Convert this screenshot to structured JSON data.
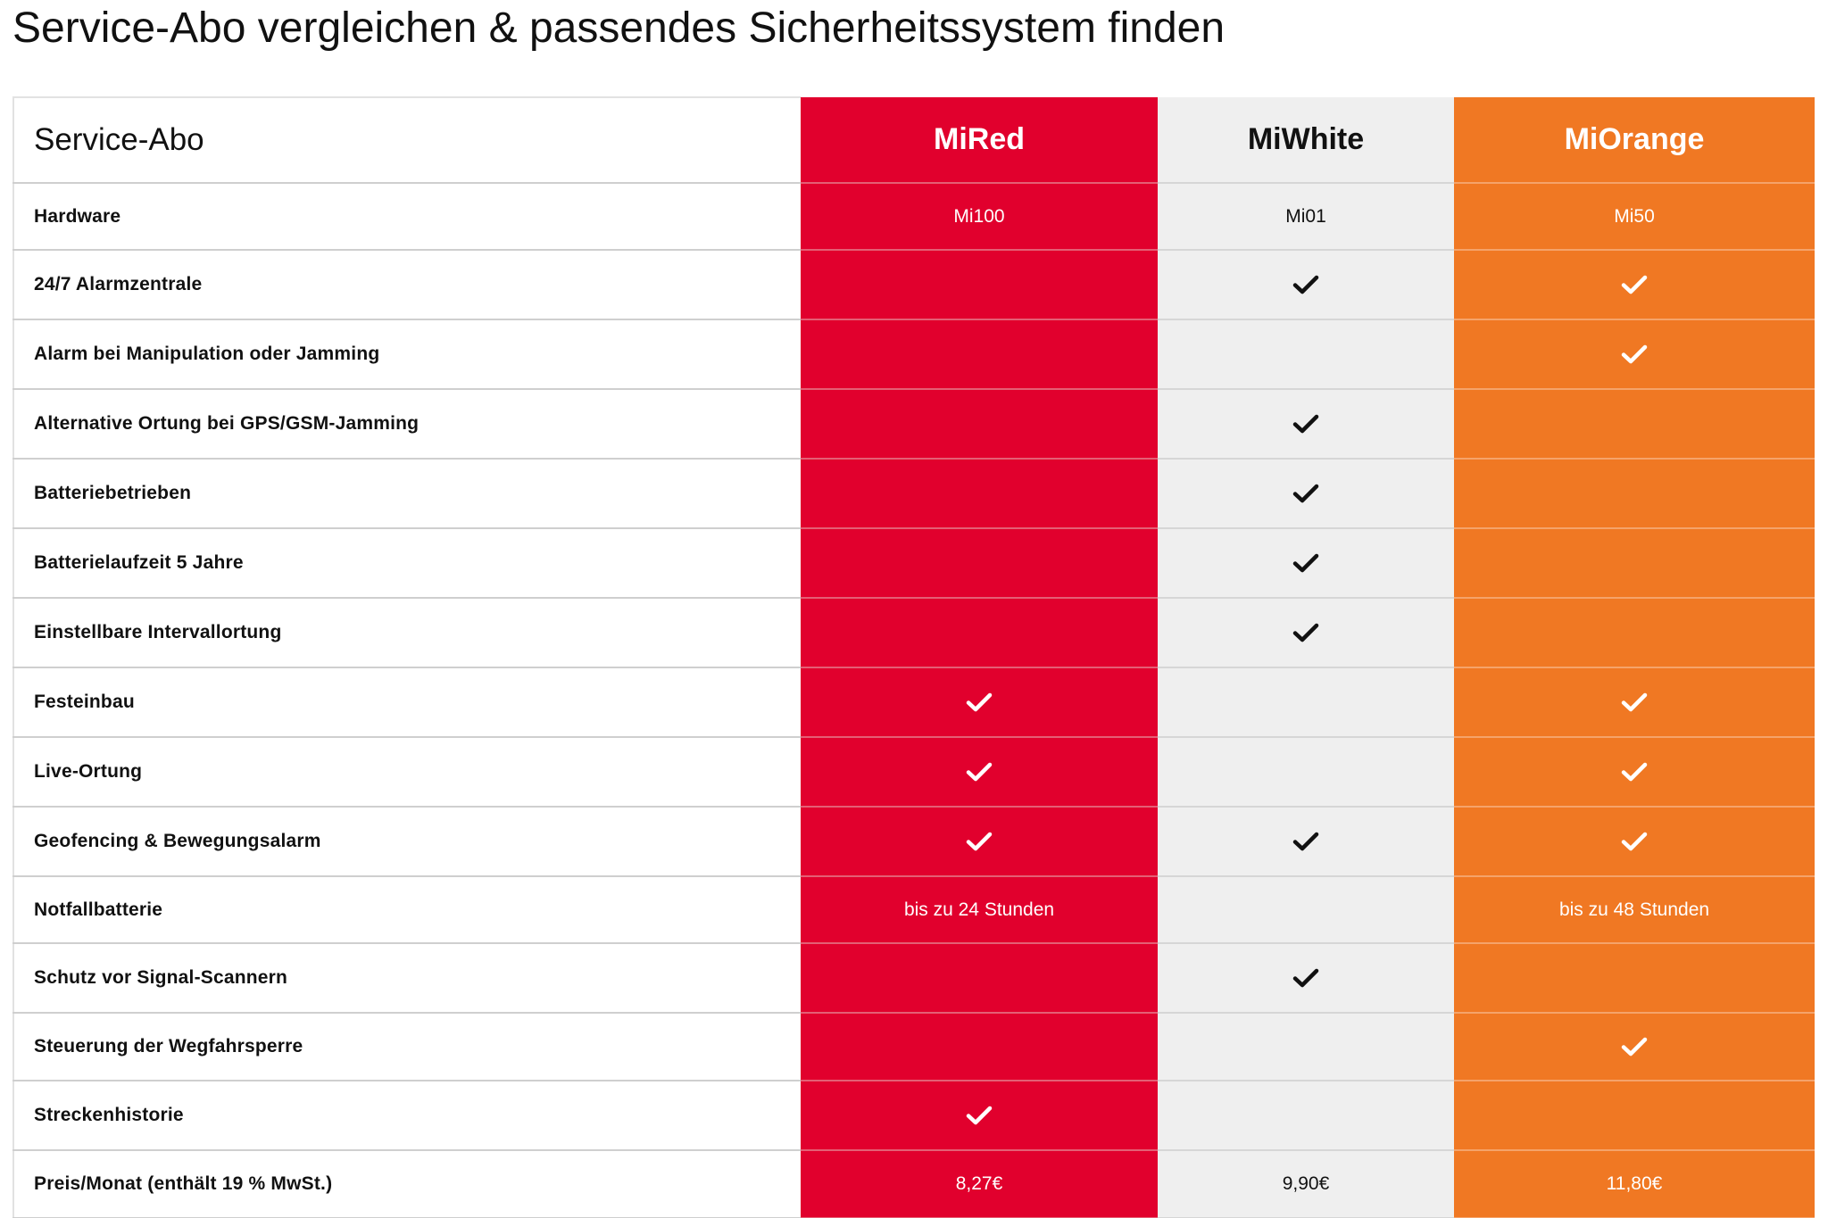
{
  "title": "Service-Abo vergleichen & passendes Sicherheitssystem finden",
  "table": {
    "header": {
      "label": "Service-Abo",
      "plans": [
        "MiRed",
        "MiWhite",
        "MiOrange"
      ]
    },
    "colors": {
      "red": "#e1002d",
      "white": "#efefef",
      "orange": "#f07823",
      "check_on_light": "#111111",
      "check_on_color": "#ffffff"
    },
    "rows": [
      {
        "label": "Hardware",
        "cells": [
          {
            "type": "text",
            "text": "Mi100"
          },
          {
            "type": "text",
            "text": "Mi01"
          },
          {
            "type": "text",
            "text": "Mi50"
          }
        ]
      },
      {
        "label": "24/7 Alarmzentrale",
        "cells": [
          {
            "type": "empty"
          },
          {
            "type": "check"
          },
          {
            "type": "check"
          }
        ]
      },
      {
        "label": "Alarm bei Manipulation oder Jamming",
        "cells": [
          {
            "type": "empty"
          },
          {
            "type": "empty"
          },
          {
            "type": "check"
          }
        ]
      },
      {
        "label": "Alternative Ortung bei GPS/GSM-Jamming",
        "cells": [
          {
            "type": "empty"
          },
          {
            "type": "check"
          },
          {
            "type": "empty"
          }
        ]
      },
      {
        "label": "Batteriebetrieben",
        "cells": [
          {
            "type": "empty"
          },
          {
            "type": "check"
          },
          {
            "type": "empty"
          }
        ]
      },
      {
        "label": "Batterielaufzeit 5 Jahre",
        "cells": [
          {
            "type": "empty"
          },
          {
            "type": "check"
          },
          {
            "type": "empty"
          }
        ]
      },
      {
        "label": "Einstellbare Intervallortung",
        "cells": [
          {
            "type": "empty"
          },
          {
            "type": "check"
          },
          {
            "type": "empty"
          }
        ]
      },
      {
        "label": "Festeinbau",
        "cells": [
          {
            "type": "check"
          },
          {
            "type": "empty"
          },
          {
            "type": "check"
          }
        ]
      },
      {
        "label": "Live-Ortung",
        "cells": [
          {
            "type": "check"
          },
          {
            "type": "empty"
          },
          {
            "type": "check"
          }
        ]
      },
      {
        "label": "Geofencing & Bewegungsalarm",
        "cells": [
          {
            "type": "check"
          },
          {
            "type": "check"
          },
          {
            "type": "check"
          }
        ]
      },
      {
        "label": "Notfallbatterie",
        "cells": [
          {
            "type": "text",
            "text": "bis zu 24 Stunden"
          },
          {
            "type": "empty"
          },
          {
            "type": "text",
            "text": "bis zu 48 Stunden"
          }
        ]
      },
      {
        "label": "Schutz vor Signal-Scannern",
        "cells": [
          {
            "type": "empty"
          },
          {
            "type": "check"
          },
          {
            "type": "empty"
          }
        ]
      },
      {
        "label": "Steuerung der Wegfahrsperre",
        "cells": [
          {
            "type": "empty"
          },
          {
            "type": "empty"
          },
          {
            "type": "check"
          }
        ]
      },
      {
        "label": "Streckenhistorie",
        "cells": [
          {
            "type": "check"
          },
          {
            "type": "empty"
          },
          {
            "type": "empty"
          }
        ]
      },
      {
        "label": "Preis/Monat (enthält 19 % MwSt.)",
        "cells": [
          {
            "type": "text",
            "text": "8,27€"
          },
          {
            "type": "text",
            "text": "9,90€"
          },
          {
            "type": "text",
            "text": "11,80€"
          }
        ]
      }
    ]
  }
}
